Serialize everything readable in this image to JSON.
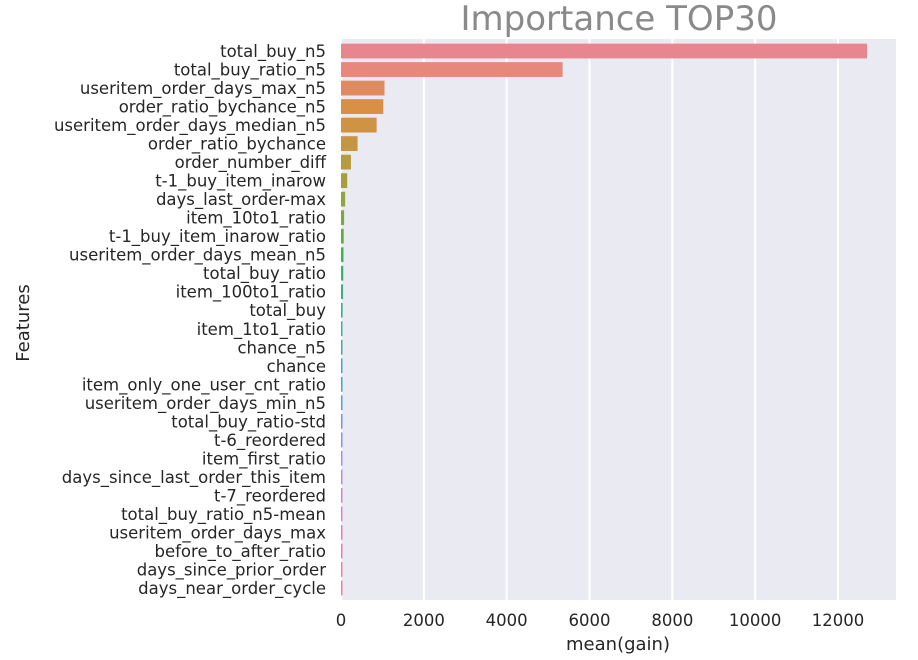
{
  "chart_data": {
    "type": "bar",
    "orientation": "horizontal",
    "title": "Importance TOP30",
    "xlabel": "mean(gain)",
    "ylabel": "Features",
    "xlim": [
      0,
      13400
    ],
    "xticks": [
      0,
      2000,
      4000,
      6000,
      8000,
      10000,
      12000
    ],
    "grid": true,
    "categories": [
      "total_buy_n5",
      "total_buy_ratio_n5",
      "useritem_order_days_max_n5",
      "order_ratio_bychance_n5",
      "useritem_order_days_median_n5",
      "order_ratio_bychance",
      "order_number_diff",
      "t-1_buy_item_inarow",
      "days_last_order-max",
      "item_10to1_ratio",
      "t-1_buy_item_inarow_ratio",
      "useritem_order_days_mean_n5",
      "total_buy_ratio",
      "item_100to1_ratio",
      "total_buy",
      "item_1to1_ratio",
      "chance_n5",
      "chance",
      "item_only_one_user_cnt_ratio",
      "useritem_order_days_min_n5",
      "total_buy_ratio-std",
      "t-6_reordered",
      "item_first_ratio",
      "days_since_last_order_this_item",
      "t-7_reordered",
      "total_buy_ratio_n5-mean",
      "useritem_order_days_max",
      "before_to_after_ratio",
      "days_since_prior_order",
      "days_near_order_cycle"
    ],
    "values": [
      12700,
      5350,
      1050,
      1020,
      860,
      400,
      240,
      150,
      100,
      75,
      65,
      60,
      55,
      50,
      40,
      35,
      32,
      30,
      28,
      27,
      25,
      24,
      22,
      21,
      20,
      20,
      19,
      18,
      17,
      16
    ],
    "colors": [
      "#e8868f",
      "#e8877c",
      "#e08a5e",
      "#d98f44",
      "#cf9343",
      "#c49641",
      "#b79b3f",
      "#a69f3e",
      "#93a53e",
      "#7ca93e",
      "#5eae40",
      "#40b25c",
      "#3db175",
      "#3baf88",
      "#3aae98",
      "#3aada6",
      "#3babb4",
      "#3ca8c2",
      "#3fa4d1",
      "#4ba0df",
      "#6e9aea",
      "#8e93ee",
      "#a88ded",
      "#be88e8",
      "#d083df",
      "#de80d3",
      "#e27fc4",
      "#e680b4",
      "#e883a5",
      "#e8859a"
    ]
  }
}
